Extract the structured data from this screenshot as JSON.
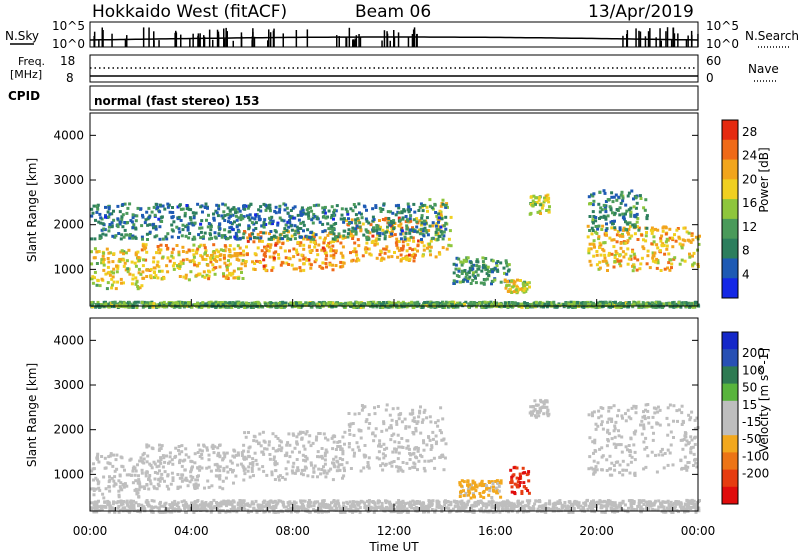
{
  "header": {
    "radar_name": "Hokkaido West (fitACF)",
    "beam": "Beam 06",
    "date": "13/Apr/2019"
  },
  "noise_panel": {
    "left_label": "N.Sky",
    "right_label": "N.Search",
    "left_tick_top": "10^5",
    "left_tick_bottom": "10^0",
    "right_tick_top": "10^5",
    "right_tick_bottom": "10^0"
  },
  "freq_panel": {
    "left_label_line1": "Freq.",
    "left_label_line2": "[MHz]",
    "right_label": "Nave",
    "left_tick_top": "18",
    "left_tick_bottom": "8",
    "right_tick_top": "60",
    "right_tick_bottom": "0"
  },
  "cpid_panel": {
    "label": "CPID",
    "mode_text": "normal (fast stereo) 153"
  },
  "colors": {
    "power_scale": [
      "#1428e6",
      "#1e5ab4",
      "#2c7e5e",
      "#4a9a5a",
      "#8ec63c",
      "#f0d020",
      "#f2a51c",
      "#ef6a18",
      "#e52a10"
    ],
    "velocity_scale": [
      "#1428c8",
      "#2850b4",
      "#2e7a52",
      "#58b43c",
      "#bebebe",
      "#bebebe",
      "#f2a81e",
      "#ec7416",
      "#e63c10",
      "#e00c0c"
    ]
  },
  "chart_data": [
    {
      "type": "heatmap",
      "name": "power",
      "xlabel": "Time UT",
      "ylabel": "Slant Range [km]",
      "colorbar_label": "Power [dB]",
      "x_ticks": [
        "00:00",
        "04:00",
        "08:00",
        "12:00",
        "16:00",
        "20:00",
        "00:00"
      ],
      "y_ticks": [
        "1000",
        "2000",
        "3000",
        "4000"
      ],
      "colorbar_ticks": [
        "4",
        "8",
        "12",
        "16",
        "20",
        "24",
        "28"
      ],
      "xlim_hours": [
        0,
        24
      ],
      "ylim_km": [
        180,
        4500
      ],
      "colorbar_range": [
        0,
        30
      ],
      "regions": [
        {
          "t0": 0,
          "t1": 2,
          "r0": 600,
          "r1": 1500,
          "v": 18
        },
        {
          "t0": 2,
          "t1": 6,
          "r0": 800,
          "r1": 1600,
          "v": 20
        },
        {
          "t0": 6,
          "t1": 10,
          "r0": 1000,
          "r1": 1900,
          "v": 22
        },
        {
          "t0": 10,
          "t1": 13,
          "r0": 1200,
          "r1": 2200,
          "v": 22
        },
        {
          "t0": 13,
          "t1": 14.2,
          "r0": 1300,
          "r1": 2600,
          "v": 18
        },
        {
          "t0": 0,
          "t1": 14,
          "r0": 1700,
          "r1": 2500,
          "v": 8
        },
        {
          "t0": 14.3,
          "t1": 16.5,
          "r0": 700,
          "r1": 1300,
          "v": 10
        },
        {
          "t0": 16.3,
          "t1": 17.3,
          "r0": 500,
          "r1": 800,
          "v": 18
        },
        {
          "t0": 17.3,
          "t1": 18.1,
          "r0": 2200,
          "r1": 2700,
          "v": 16
        },
        {
          "t0": 19.6,
          "t1": 24,
          "r0": 1000,
          "r1": 2000,
          "v": 20
        },
        {
          "t0": 19.6,
          "t1": 22,
          "r0": 1900,
          "r1": 2800,
          "v": 9
        },
        {
          "t0": 0,
          "t1": 24,
          "r0": 180,
          "r1": 300,
          "v": 12
        }
      ]
    },
    {
      "type": "heatmap",
      "name": "velocity",
      "xlabel": "Time UT",
      "ylabel": "Slant Range [km]",
      "colorbar_label": "Velocity [m s^-1]",
      "x_ticks": [
        "00:00",
        "04:00",
        "08:00",
        "12:00",
        "16:00",
        "20:00",
        "00:00"
      ],
      "y_ticks": [
        "1000",
        "2000",
        "3000",
        "4000"
      ],
      "colorbar_ticks": [
        "200",
        "100",
        "50",
        "15",
        "-15",
        "-50",
        "-100",
        "-200"
      ],
      "xlim_hours": [
        0,
        24
      ],
      "ylim_km": [
        180,
        4500
      ],
      "colorbar_range": [
        -250,
        250
      ],
      "regions": [
        {
          "t0": 0,
          "t1": 2,
          "r0": 500,
          "r1": 1500,
          "v": 0
        },
        {
          "t0": 2,
          "t1": 6,
          "r0": 700,
          "r1": 1700,
          "v": -5
        },
        {
          "t0": 6,
          "t1": 10,
          "r0": 900,
          "r1": 2000,
          "v": -10
        },
        {
          "t0": 10,
          "t1": 14,
          "r0": 1100,
          "r1": 2600,
          "v": -20
        },
        {
          "t0": 14.5,
          "t1": 16.2,
          "r0": 500,
          "r1": 900,
          "v": -60
        },
        {
          "t0": 16.5,
          "t1": 17.3,
          "r0": 600,
          "r1": 1200,
          "v": -200
        },
        {
          "t0": 17.3,
          "t1": 18.1,
          "r0": 2300,
          "r1": 2700,
          "v": 0
        },
        {
          "t0": 19.6,
          "t1": 24,
          "r0": 1000,
          "r1": 2600,
          "v": 5
        },
        {
          "t0": 0,
          "t1": 24,
          "r0": 180,
          "r1": 450,
          "v": 30
        }
      ]
    }
  ]
}
